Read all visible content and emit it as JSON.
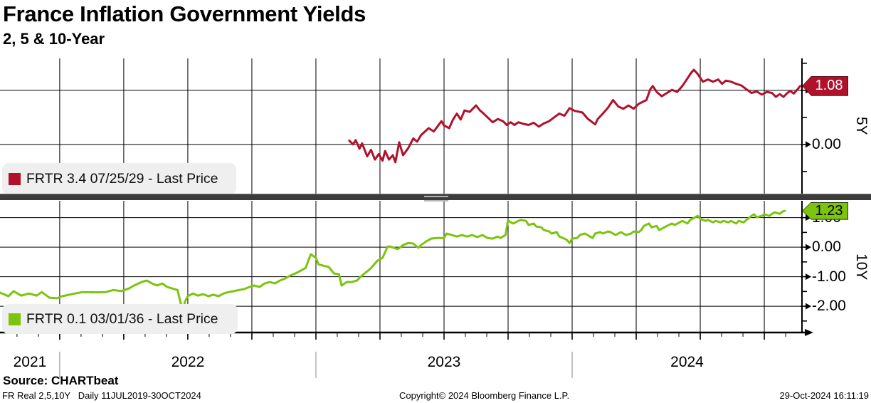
{
  "header": {
    "title": "France Inflation Government Yields",
    "subtitle": "2, 5 & 10-Year"
  },
  "colors": {
    "red": "#b0122b",
    "green": "#7cc40e",
    "legend_background": "#efefef",
    "separator": "#3c3c3c",
    "gridline": "#000000"
  },
  "chart_data": [
    {
      "type": "line",
      "panel_label": "5Y",
      "legend": "FRTR 3.4 07/25/29 - Last Price",
      "last_price": 1.08,
      "last_price_label": "1.08",
      "color": "#b0122b",
      "xlim": [
        2021.767,
        2024.897
      ],
      "ylim": [
        -0.91,
        1.59
      ],
      "yticks": [
        {
          "v": 1,
          "label": "1.00"
        },
        {
          "v": 0,
          "label": "0.00"
        }
      ],
      "yticks_minor": [
        1.5,
        0.5,
        -0.5
      ],
      "x_year_labels": [
        "2021",
        "2022",
        "2023",
        "2024"
      ],
      "points": [
        [
          2023.13,
          0.07
        ],
        [
          2023.145,
          0.0
        ],
        [
          2023.155,
          0.08
        ],
        [
          2023.17,
          -0.08
        ],
        [
          2023.18,
          0.02
        ],
        [
          2023.2,
          -0.22
        ],
        [
          2023.215,
          -0.1
        ],
        [
          2023.23,
          -0.28
        ],
        [
          2023.245,
          -0.18
        ],
        [
          2023.26,
          -0.3
        ],
        [
          2023.27,
          -0.12
        ],
        [
          2023.285,
          -0.28
        ],
        [
          2023.3,
          -0.2
        ],
        [
          2023.31,
          -0.33
        ],
        [
          2023.325,
          0.04
        ],
        [
          2023.34,
          -0.2
        ],
        [
          2023.36,
          -0.07
        ],
        [
          2023.38,
          0.11
        ],
        [
          2023.395,
          0.05
        ],
        [
          2023.41,
          0.17
        ],
        [
          2023.44,
          0.3
        ],
        [
          2023.46,
          0.24
        ],
        [
          2023.49,
          0.43
        ],
        [
          2023.5,
          0.35
        ],
        [
          2023.52,
          0.3
        ],
        [
          2023.535,
          0.46
        ],
        [
          2023.55,
          0.57
        ],
        [
          2023.565,
          0.46
        ],
        [
          2023.58,
          0.63
        ],
        [
          2023.6,
          0.6
        ],
        [
          2023.625,
          0.72
        ],
        [
          2023.64,
          0.63
        ],
        [
          2023.65,
          0.59
        ],
        [
          2023.67,
          0.5
        ],
        [
          2023.69,
          0.41
        ],
        [
          2023.71,
          0.47
        ],
        [
          2023.73,
          0.43
        ],
        [
          2023.745,
          0.36
        ],
        [
          2023.76,
          0.41
        ],
        [
          2023.775,
          0.36
        ],
        [
          2023.79,
          0.41
        ],
        [
          2023.81,
          0.38
        ],
        [
          2023.83,
          0.36
        ],
        [
          2023.85,
          0.4
        ],
        [
          2023.87,
          0.33
        ],
        [
          2023.89,
          0.39
        ],
        [
          2023.91,
          0.43
        ],
        [
          2023.93,
          0.5
        ],
        [
          2023.95,
          0.57
        ],
        [
          2023.97,
          0.53
        ],
        [
          2023.99,
          0.67
        ],
        [
          2024.01,
          0.62
        ],
        [
          2024.04,
          0.59
        ],
        [
          2024.06,
          0.48
        ],
        [
          2024.09,
          0.37
        ],
        [
          2024.1,
          0.47
        ],
        [
          2024.12,
          0.57
        ],
        [
          2024.14,
          0.68
        ],
        [
          2024.16,
          0.82
        ],
        [
          2024.18,
          0.7
        ],
        [
          2024.2,
          0.66
        ],
        [
          2024.22,
          0.72
        ],
        [
          2024.24,
          0.66
        ],
        [
          2024.26,
          0.75
        ],
        [
          2024.29,
          0.82
        ],
        [
          2024.305,
          1.02
        ],
        [
          2024.315,
          1.08
        ],
        [
          2024.33,
          0.97
        ],
        [
          2024.35,
          0.89
        ],
        [
          2024.37,
          0.95
        ],
        [
          2024.39,
          1.01
        ],
        [
          2024.41,
          0.97
        ],
        [
          2024.43,
          1.08
        ],
        [
          2024.45,
          1.22
        ],
        [
          2024.465,
          1.33
        ],
        [
          2024.475,
          1.38
        ],
        [
          2024.49,
          1.3
        ],
        [
          2024.51,
          1.16
        ],
        [
          2024.53,
          1.2
        ],
        [
          2024.55,
          1.16
        ],
        [
          2024.57,
          1.2
        ],
        [
          2024.585,
          1.12
        ],
        [
          2024.6,
          1.18
        ],
        [
          2024.62,
          1.16
        ],
        [
          2024.64,
          1.12
        ],
        [
          2024.66,
          1.09
        ],
        [
          2024.68,
          1.02
        ],
        [
          2024.7,
          0.95
        ],
        [
          2024.72,
          0.98
        ],
        [
          2024.74,
          0.92
        ],
        [
          2024.76,
          0.97
        ],
        [
          2024.78,
          0.95
        ],
        [
          2024.795,
          0.88
        ],
        [
          2024.81,
          0.93
        ],
        [
          2024.825,
          0.88
        ],
        [
          2024.84,
          0.95
        ],
        [
          2024.85,
          0.99
        ],
        [
          2024.865,
          0.94
        ],
        [
          2024.88,
          1.02
        ],
        [
          2024.89,
          1.08
        ]
      ]
    },
    {
      "type": "line",
      "panel_label": "10Y",
      "legend": "FRTR 0.1 03/01/36 - Last Price",
      "last_price": 1.23,
      "last_price_label": "1.23",
      "color": "#7cc40e",
      "xlim": [
        2021.767,
        2024.897
      ],
      "ylim": [
        -2.89,
        1.57
      ],
      "yticks": [
        {
          "v": 1,
          "label": "1.00"
        },
        {
          "v": 0,
          "label": "0.00"
        },
        {
          "v": -1,
          "label": "-1.00"
        },
        {
          "v": -2,
          "label": "-2.00"
        }
      ],
      "yticks_minor": [
        0.5,
        -0.5,
        -1.5,
        -2.5
      ],
      "x_year_labels": [
        "2021",
        "2022",
        "2023",
        "2024"
      ],
      "points": [
        [
          2021.767,
          -1.54
        ],
        [
          2021.8,
          -1.66
        ],
        [
          2021.82,
          -1.49
        ],
        [
          2021.85,
          -1.64
        ],
        [
          2021.88,
          -1.57
        ],
        [
          2021.91,
          -1.64
        ],
        [
          2021.93,
          -1.52
        ],
        [
          2021.96,
          -1.71
        ],
        [
          2021.99,
          -1.73
        ],
        [
          2022.01,
          -1.66
        ],
        [
          2022.06,
          -1.57
        ],
        [
          2022.09,
          -1.52
        ],
        [
          2022.14,
          -1.53
        ],
        [
          2022.18,
          -1.52
        ],
        [
          2022.21,
          -1.45
        ],
        [
          2022.24,
          -1.49
        ],
        [
          2022.27,
          -1.4
        ],
        [
          2022.29,
          -1.3
        ],
        [
          2022.32,
          -1.18
        ],
        [
          2022.34,
          -1.13
        ],
        [
          2022.36,
          -1.23
        ],
        [
          2022.38,
          -1.3
        ],
        [
          2022.4,
          -1.23
        ],
        [
          2022.42,
          -1.35
        ],
        [
          2022.44,
          -1.4
        ],
        [
          2022.46,
          -1.45
        ],
        [
          2022.475,
          -2.0
        ],
        [
          2022.48,
          -2.12
        ],
        [
          2022.49,
          -1.83
        ],
        [
          2022.5,
          -1.66
        ],
        [
          2022.52,
          -1.57
        ],
        [
          2022.54,
          -1.64
        ],
        [
          2022.56,
          -1.59
        ],
        [
          2022.58,
          -1.66
        ],
        [
          2022.6,
          -1.61
        ],
        [
          2022.62,
          -1.66
        ],
        [
          2022.64,
          -1.57
        ],
        [
          2022.66,
          -1.52
        ],
        [
          2022.68,
          -1.49
        ],
        [
          2022.7,
          -1.45
        ],
        [
          2022.72,
          -1.42
        ],
        [
          2022.74,
          -1.35
        ],
        [
          2022.76,
          -1.3
        ],
        [
          2022.78,
          -1.35
        ],
        [
          2022.8,
          -1.23
        ],
        [
          2022.82,
          -1.18
        ],
        [
          2022.84,
          -1.23
        ],
        [
          2022.86,
          -1.13
        ],
        [
          2022.88,
          -1.06
        ],
        [
          2022.9,
          -0.96
        ],
        [
          2022.92,
          -0.89
        ],
        [
          2022.94,
          -0.8
        ],
        [
          2022.96,
          -0.7
        ],
        [
          2022.97,
          -0.46
        ],
        [
          2022.98,
          -0.24
        ],
        [
          2023.0,
          -0.36
        ],
        [
          2023.01,
          -0.58
        ],
        [
          2023.03,
          -0.63
        ],
        [
          2023.05,
          -0.67
        ],
        [
          2023.07,
          -0.89
        ],
        [
          2023.09,
          -0.92
        ],
        [
          2023.1,
          -1.3
        ],
        [
          2023.12,
          -1.18
        ],
        [
          2023.14,
          -1.18
        ],
        [
          2023.16,
          -1.13
        ],
        [
          2023.18,
          -0.96
        ],
        [
          2023.19,
          -0.89
        ],
        [
          2023.21,
          -0.75
        ],
        [
          2023.24,
          -0.46
        ],
        [
          2023.26,
          -0.36
        ],
        [
          2023.28,
          0.02
        ],
        [
          2023.29,
          0.02
        ],
        [
          2023.32,
          -0.07
        ],
        [
          2023.34,
          0.07
        ],
        [
          2023.36,
          0.14
        ],
        [
          2023.38,
          0.12
        ],
        [
          2023.4,
          -0.02
        ],
        [
          2023.41,
          0.07
        ],
        [
          2023.43,
          0.19
        ],
        [
          2023.45,
          0.29
        ],
        [
          2023.47,
          0.31
        ],
        [
          2023.5,
          0.31
        ],
        [
          2023.51,
          0.46
        ],
        [
          2023.53,
          0.41
        ],
        [
          2023.55,
          0.36
        ],
        [
          2023.57,
          0.41
        ],
        [
          2023.59,
          0.36
        ],
        [
          2023.61,
          0.41
        ],
        [
          2023.63,
          0.34
        ],
        [
          2023.65,
          0.41
        ],
        [
          2023.67,
          0.31
        ],
        [
          2023.69,
          0.29
        ],
        [
          2023.71,
          0.36
        ],
        [
          2023.72,
          0.31
        ],
        [
          2023.74,
          0.41
        ],
        [
          2023.75,
          0.92
        ],
        [
          2023.76,
          0.84
        ],
        [
          2023.77,
          0.8
        ],
        [
          2023.79,
          0.89
        ],
        [
          2023.8,
          0.92
        ],
        [
          2023.82,
          0.89
        ],
        [
          2023.83,
          0.75
        ],
        [
          2023.85,
          0.8
        ],
        [
          2023.86,
          0.7
        ],
        [
          2023.88,
          0.67
        ],
        [
          2023.89,
          0.58
        ],
        [
          2023.91,
          0.53
        ],
        [
          2023.92,
          0.46
        ],
        [
          2023.94,
          0.51
        ],
        [
          2023.95,
          0.36
        ],
        [
          2023.97,
          0.29
        ],
        [
          2023.98,
          0.24
        ],
        [
          2023.99,
          0.14
        ],
        [
          2024.0,
          0.29
        ],
        [
          2024.02,
          0.31
        ],
        [
          2024.03,
          0.41
        ],
        [
          2024.05,
          0.46
        ],
        [
          2024.06,
          0.41
        ],
        [
          2024.08,
          0.31
        ],
        [
          2024.09,
          0.46
        ],
        [
          2024.11,
          0.51
        ],
        [
          2024.12,
          0.46
        ],
        [
          2024.14,
          0.53
        ],
        [
          2024.15,
          0.51
        ],
        [
          2024.17,
          0.41
        ],
        [
          2024.18,
          0.46
        ],
        [
          2024.19,
          0.51
        ],
        [
          2024.21,
          0.41
        ],
        [
          2024.23,
          0.46
        ],
        [
          2024.24,
          0.53
        ],
        [
          2024.26,
          0.51
        ],
        [
          2024.27,
          0.58
        ],
        [
          2024.28,
          0.72
        ],
        [
          2024.3,
          0.8
        ],
        [
          2024.31,
          0.67
        ],
        [
          2024.33,
          0.72
        ],
        [
          2024.34,
          0.58
        ],
        [
          2024.36,
          0.67
        ],
        [
          2024.37,
          0.72
        ],
        [
          2024.39,
          0.8
        ],
        [
          2024.4,
          0.75
        ],
        [
          2024.42,
          0.84
        ],
        [
          2024.43,
          0.89
        ],
        [
          2024.45,
          0.8
        ],
        [
          2024.46,
          0.92
        ],
        [
          2024.48,
          1.01
        ],
        [
          2024.49,
          1.06
        ],
        [
          2024.5,
          0.96
        ],
        [
          2024.52,
          0.89
        ],
        [
          2024.53,
          0.92
        ],
        [
          2024.55,
          0.84
        ],
        [
          2024.56,
          0.89
        ],
        [
          2024.58,
          0.84
        ],
        [
          2024.59,
          0.89
        ],
        [
          2024.61,
          0.84
        ],
        [
          2024.62,
          0.89
        ],
        [
          2024.64,
          0.8
        ],
        [
          2024.65,
          0.89
        ],
        [
          2024.67,
          0.84
        ],
        [
          2024.68,
          0.92
        ],
        [
          2024.7,
          1.06
        ],
        [
          2024.71,
          1.11
        ],
        [
          2024.72,
          1.01
        ],
        [
          2024.74,
          1.06
        ],
        [
          2024.75,
          1.11
        ],
        [
          2024.77,
          1.06
        ],
        [
          2024.78,
          1.13
        ],
        [
          2024.79,
          1.18
        ],
        [
          2024.81,
          1.13
        ],
        [
          2024.82,
          1.2
        ],
        [
          2024.83,
          1.23
        ]
      ]
    }
  ],
  "xaxis": {
    "xlim": [
      2021.767,
      2024.897
    ],
    "years": [
      {
        "label": "2021",
        "start": 2021.767,
        "end": 2022
      },
      {
        "label": "2022",
        "start": 2022,
        "end": 2023
      },
      {
        "label": "2023",
        "start": 2023,
        "end": 2024
      },
      {
        "label": "2024",
        "start": 2024,
        "end": 2024.897
      }
    ],
    "dividers": [
      2022,
      2023,
      2024
    ]
  },
  "footer": {
    "source": "Source: CHARTbeat",
    "left": "FR Real 2,5,10Y   Daily 11JUL2019-30OCT2024",
    "center": "Copyright© 2024 Bloomberg Finance L.P.",
    "right": "29-Oct-2024 16:11:19"
  }
}
